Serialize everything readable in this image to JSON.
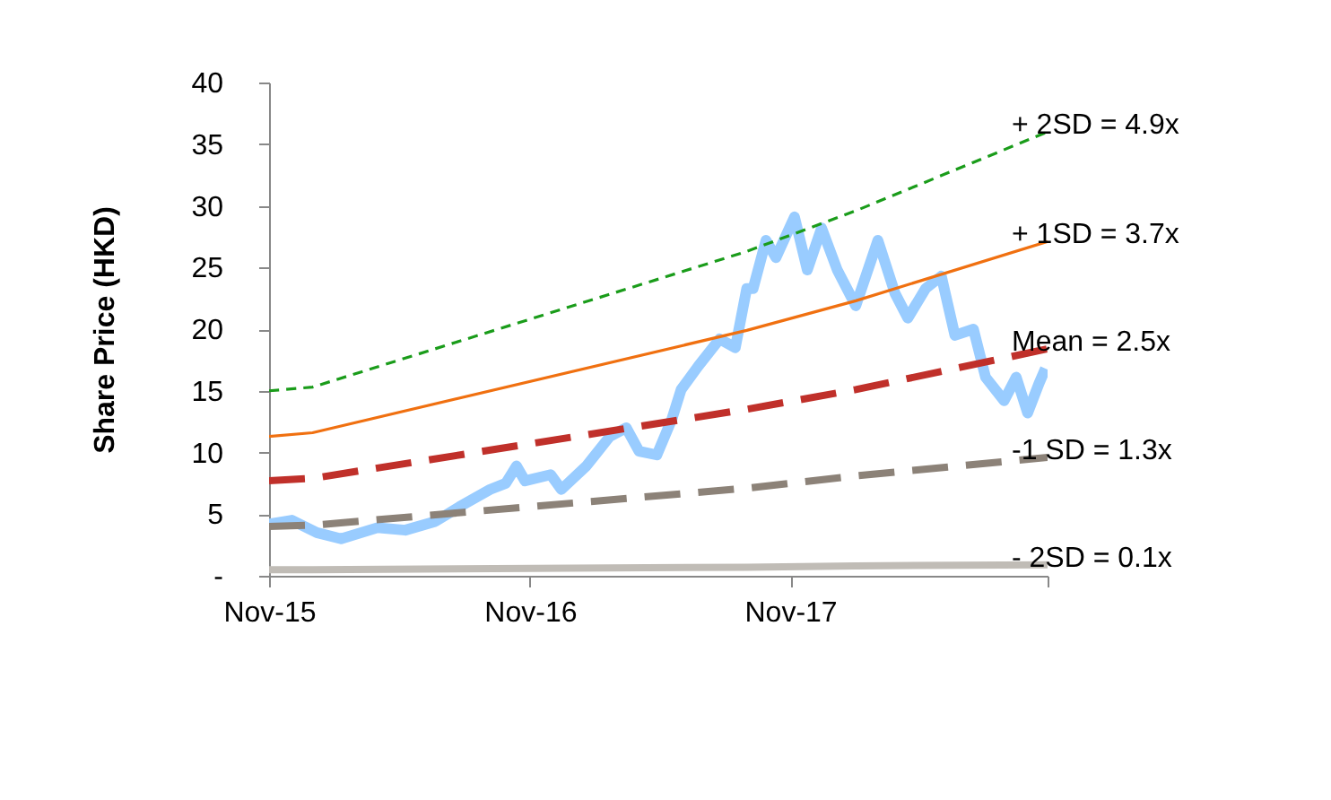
{
  "chart_data": {
    "type": "line",
    "ylabel": "Share Price (HKD)",
    "grid": false,
    "marker": "none",
    "xlim": [
      "2015-11-01",
      "2018-10-28"
    ],
    "xticks": [
      {
        "value": "2015-11-01",
        "label": "Nov-15"
      },
      {
        "value": "2016-11-01",
        "label": "Nov-16"
      },
      {
        "value": "2017-11-01",
        "label": "Nov-17"
      },
      {
        "value": "2018-10-28",
        "label": null
      }
    ],
    "ylim": [
      0,
      40
    ],
    "yticks": [
      {
        "value": 0,
        "label": "-"
      },
      5,
      10,
      15,
      20,
      25,
      30,
      35,
      40
    ],
    "series": [
      {
        "color": "#99ccff",
        "line_style": "solid",
        "x": [
          "2015-11-01",
          "2015-12-03",
          "2016-01-07",
          "2016-02-10",
          "2016-04-01",
          "2016-05-10",
          "2016-06-21",
          "2016-07-25",
          "2016-09-06",
          "2016-09-28",
          "2016-10-13",
          "2016-10-25",
          "2016-11-30",
          "2016-12-15",
          "2017-01-19",
          "2017-02-21",
          "2017-03-16",
          "2017-04-03",
          "2017-04-28",
          "2017-05-19",
          "2017-06-01",
          "2017-06-25",
          "2017-07-25",
          "2017-08-16",
          "2017-09-01",
          "2017-09-10",
          "2017-09-28",
          "2017-10-12",
          "2017-11-07",
          "2017-11-25",
          "2017-12-15",
          "2018-01-06",
          "2018-02-01",
          "2018-03-04",
          "2018-03-28",
          "2018-04-15",
          "2018-05-10",
          "2018-06-01",
          "2018-06-20",
          "2018-07-16",
          "2018-08-02",
          "2018-08-28",
          "2018-09-14",
          "2018-09-30",
          "2018-10-16",
          "2018-10-25"
        ],
        "values": [
          4.2,
          4.5,
          3.5,
          3.0,
          3.9,
          3.7,
          4.4,
          5.6,
          7.0,
          7.5,
          8.9,
          7.7,
          8.2,
          7.0,
          8.9,
          11.3,
          12.0,
          10.1,
          9.8,
          12.7,
          15.1,
          17.0,
          19.2,
          18.5,
          23.3,
          23.3,
          27.2,
          25.8,
          29.1,
          24.8,
          28.2,
          24.8,
          21.9,
          27.2,
          22.9,
          20.9,
          23.3,
          24.3,
          19.5,
          20.0,
          16.1,
          14.2,
          16.1,
          13.2,
          15.6,
          16.8
        ]
      },
      {
        "name": "+ 2SD = 4.9x",
        "color": "#1a9c1a",
        "line_style": "dotted",
        "x": [
          "2015-11-01",
          "2016-01-01",
          "2017-09-01",
          "2018-02-01",
          "2018-10-28"
        ],
        "values": [
          15.0,
          15.3,
          26.3,
          29.6,
          36.0
        ]
      },
      {
        "name": "+ 1SD = 3.7x",
        "color": "#f07010",
        "line_style": "solid",
        "x": [
          "2015-11-01",
          "2016-01-01",
          "2017-09-01",
          "2018-02-01",
          "2018-10-28"
        ],
        "values": [
          11.3,
          11.6,
          19.9,
          22.3,
          27.1
        ]
      },
      {
        "name": "Mean = 2.5x",
        "color": "#c0302a",
        "line_style": "dashed",
        "x": [
          "2015-11-01",
          "2016-01-01",
          "2017-09-01",
          "2018-02-01",
          "2018-10-28"
        ],
        "values": [
          7.7,
          7.9,
          13.5,
          15.1,
          18.4
        ]
      },
      {
        "name": "-1 SD = 1.3x",
        "color": "#8c8278",
        "line_style": "dashed",
        "x": [
          "2015-11-01",
          "2016-01-01",
          "2017-09-01",
          "2018-02-01",
          "2018-10-28"
        ],
        "values": [
          4.0,
          4.1,
          7.1,
          8.1,
          9.6
        ]
      },
      {
        "name": "- 2SD = 0.1x",
        "color": "#c0bcb6",
        "line_style": "solid",
        "x": [
          "2015-11-01",
          "2016-01-01",
          "2017-09-01",
          "2018-02-01",
          "2018-10-28"
        ],
        "values": [
          0.5,
          0.5,
          0.7,
          0.8,
          0.9
        ]
      }
    ]
  }
}
